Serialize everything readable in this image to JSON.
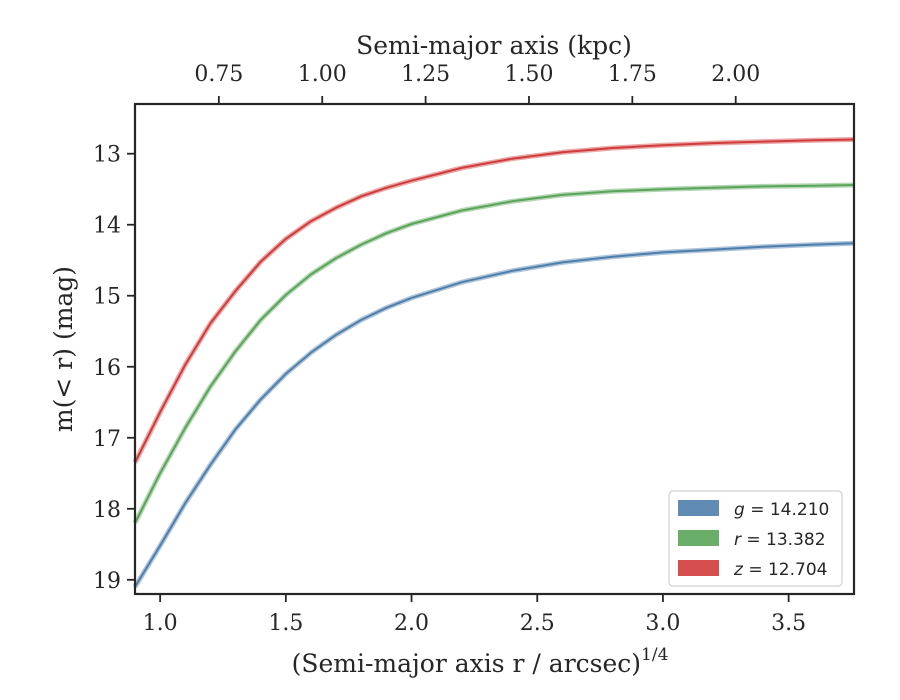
{
  "chart_data": {
    "type": "line",
    "xlabel": "(Semi-major axis r / arcsec)",
    "xlabel_exponent": "1/4",
    "x2label": "Semi-major axis (kpc)",
    "ylabel": "m(< r) (mag)",
    "xlim": [
      0.9,
      3.76
    ],
    "ylim": [
      19.2,
      12.3
    ],
    "y_inverted": true,
    "x_ticks": [
      "1.0",
      "1.5",
      "2.0",
      "2.5",
      "3.0",
      "3.5"
    ],
    "x2_ticks": [
      "0.75",
      "1.00",
      "1.25",
      "1.50",
      "1.75",
      "2.00"
    ],
    "y_ticks": [
      "13",
      "14",
      "15",
      "16",
      "17",
      "18",
      "19"
    ],
    "grid": false,
    "legend_position": "bottom-right",
    "series": [
      {
        "name": "g = 14.210",
        "legend_var": "g",
        "legend_value": "14.210",
        "color": "#4f7fac",
        "x": [
          0.9,
          1.0,
          1.1,
          1.2,
          1.3,
          1.4,
          1.5,
          1.6,
          1.7,
          1.8,
          1.9,
          2.0,
          2.2,
          2.4,
          2.6,
          2.8,
          3.0,
          3.2,
          3.4,
          3.6,
          3.76
        ],
        "y": [
          19.1,
          18.52,
          17.92,
          17.38,
          16.88,
          16.46,
          16.1,
          15.8,
          15.55,
          15.34,
          15.17,
          15.03,
          14.81,
          14.65,
          14.53,
          14.45,
          14.39,
          14.35,
          14.31,
          14.28,
          14.26
        ]
      },
      {
        "name": "r = 13.382",
        "legend_var": "r",
        "legend_value": "13.382",
        "color": "#5aa55a",
        "x": [
          0.9,
          1.0,
          1.1,
          1.2,
          1.3,
          1.4,
          1.5,
          1.6,
          1.7,
          1.8,
          1.9,
          2.0,
          2.2,
          2.4,
          2.6,
          2.8,
          3.0,
          3.2,
          3.4,
          3.6,
          3.76
        ],
        "y": [
          18.2,
          17.5,
          16.86,
          16.28,
          15.78,
          15.34,
          14.99,
          14.7,
          14.47,
          14.28,
          14.12,
          13.99,
          13.8,
          13.67,
          13.58,
          13.53,
          13.5,
          13.48,
          13.46,
          13.45,
          13.44
        ]
      },
      {
        "name": "z = 12.704",
        "legend_var": "z",
        "legend_value": "12.704",
        "color": "#d03c3c",
        "x": [
          0.9,
          1.0,
          1.1,
          1.2,
          1.3,
          1.4,
          1.5,
          1.6,
          1.7,
          1.8,
          1.9,
          2.0,
          2.2,
          2.4,
          2.6,
          2.8,
          3.0,
          3.2,
          3.4,
          3.6,
          3.76
        ],
        "y": [
          17.35,
          16.64,
          15.97,
          15.39,
          14.93,
          14.52,
          14.2,
          13.95,
          13.76,
          13.6,
          13.48,
          13.38,
          13.2,
          13.07,
          12.98,
          12.92,
          12.88,
          12.85,
          12.83,
          12.81,
          12.8
        ]
      }
    ]
  }
}
